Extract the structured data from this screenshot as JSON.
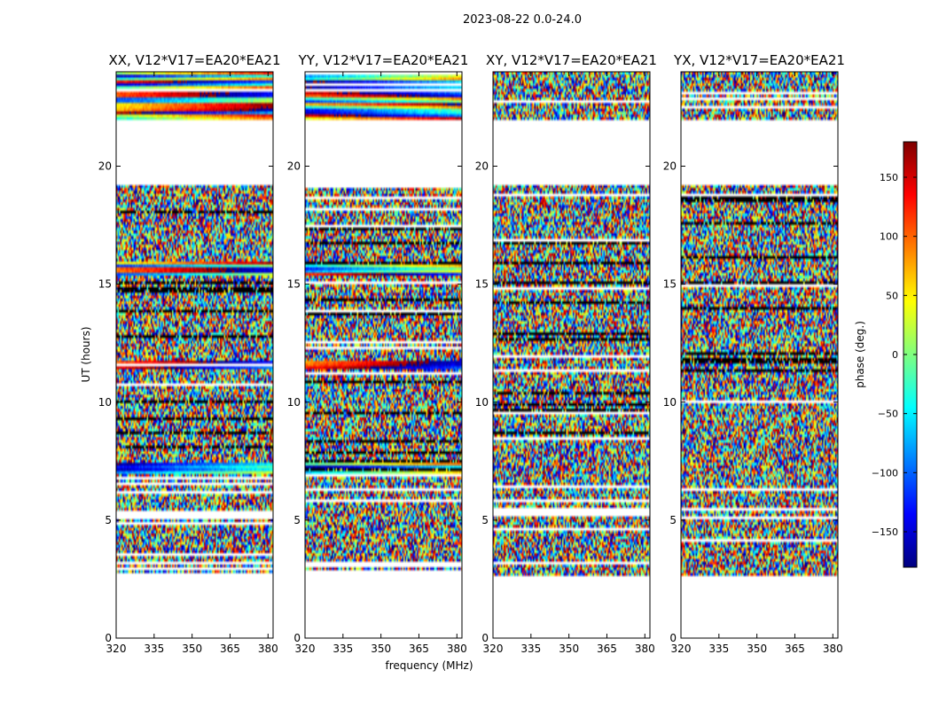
{
  "figure": {
    "suptitle": "2023-08-22 0.0-24.0"
  },
  "chart_data": {
    "type": "heatmap",
    "xlabel": "frequency (MHz)",
    "ylabel": "UT (hours)",
    "xlim": [
      320,
      382
    ],
    "ylim": [
      0,
      24
    ],
    "xticks": [
      320,
      335,
      350,
      365,
      380
    ],
    "yticks": [
      0,
      5,
      10,
      15,
      20
    ],
    "colormap": "jet",
    "colorbar": {
      "label": "phase (deg.)",
      "range": [
        -180,
        180
      ],
      "ticks": [
        150,
        100,
        50,
        0,
        -50,
        -100,
        -150
      ],
      "tick_labels": [
        "150",
        "100",
        "50",
        "0",
        "−50",
        "−100",
        "−150"
      ],
      "stops": [
        "#00007f",
        "#0000ff",
        "#007fff",
        "#00ffff",
        "#7fff7f",
        "#ffff00",
        "#ff7f00",
        "#ff0000",
        "#7f0000"
      ]
    },
    "data_coverage_ut": [
      [
        2.6,
        22.0
      ],
      [
        0,
        0
      ]
    ],
    "observed_ut_ranges": [
      [
        2.6,
        19.2
      ],
      [
        22.0,
        24.0
      ]
    ],
    "panels": [
      {
        "name": "XX",
        "title": "XX, V12*V17=EA20*EA21"
      },
      {
        "name": "YY",
        "title": "YY, V12*V17=EA20*EA21"
      },
      {
        "name": "XY",
        "title": "XY, V12*V17=EA20*EA21"
      },
      {
        "name": "YX",
        "title": "YX, V12*V17=EA20*EA21"
      }
    ]
  }
}
